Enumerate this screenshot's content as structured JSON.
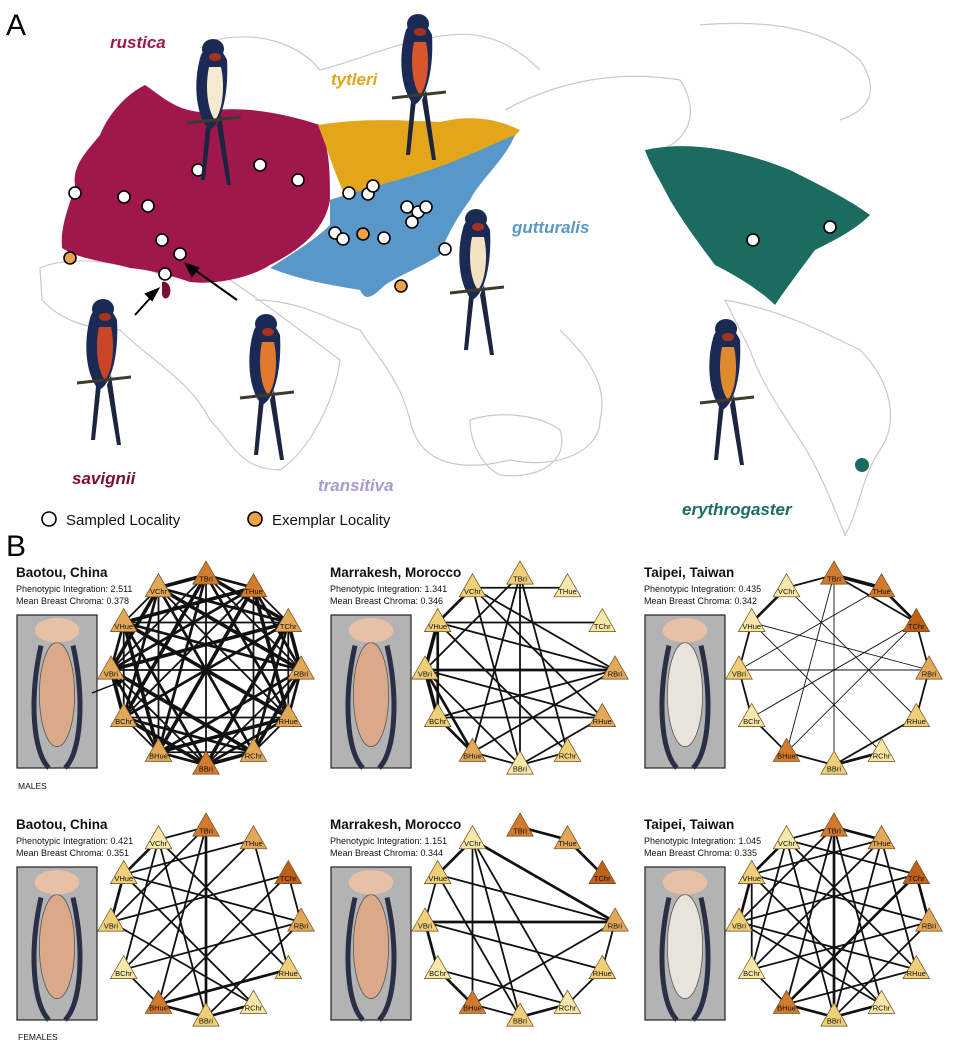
{
  "panel_a": {
    "letter": "A",
    "subspecies": [
      {
        "name": "rustica",
        "color": "#a0174e"
      },
      {
        "name": "tytleri",
        "color": "#e3a51b"
      },
      {
        "name": "gutturalis",
        "color": "#5a97c9"
      },
      {
        "name": "savignii",
        "color": "#7a0f2d"
      },
      {
        "name": "transitiva",
        "color": "#a89bd0"
      },
      {
        "name": "erythrogaster",
        "color": "#1c6b60"
      }
    ],
    "legend": {
      "sampled": "Sampled Locality",
      "exemplar": "Exemplar Locality",
      "sampled_color": "#ffffff",
      "exemplar_color": "#f0a04a"
    }
  },
  "panel_b": {
    "letter": "B",
    "males_label": "MALES",
    "females_label": "FEMALES",
    "node_labels": [
      "TBri",
      "THue",
      "TChr",
      "RBri",
      "RHue",
      "RChr",
      "BBri",
      "BHue",
      "BChr",
      "VBri",
      "VHue",
      "VChr"
    ],
    "feather_labels": [
      "T",
      "R",
      "B",
      "V"
    ],
    "networks": [
      {
        "city": "Baotou, China",
        "integration": "Phenotypic Integration: 2.511",
        "chroma": "Mean Breast Chroma: 0.378",
        "sex": "male"
      },
      {
        "city": "Marrakesh, Morocco",
        "integration": "Phenotypic Integration: 1.341",
        "chroma": "Mean Breast Chroma: 0.346",
        "sex": "male"
      },
      {
        "city": "Taipei, Taiwan",
        "integration": "Phenotypic Integration: 0.435",
        "chroma": "Mean Breast Chroma: 0.342",
        "sex": "male"
      },
      {
        "city": "Baotou, China",
        "integration": "Phenotypic Integration: 0.421",
        "chroma": "Mean Breast Chroma: 0.351",
        "sex": "female"
      },
      {
        "city": "Marrakesh, Morocco",
        "integration": "Phenotypic Integration: 1.151",
        "chroma": "Mean Breast Chroma: 0.344",
        "sex": "female"
      },
      {
        "city": "Taipei, Taiwan",
        "integration": "Phenotypic Integration: 1.045",
        "chroma": "Mean Breast Chroma: 0.335",
        "sex": "female"
      }
    ]
  }
}
